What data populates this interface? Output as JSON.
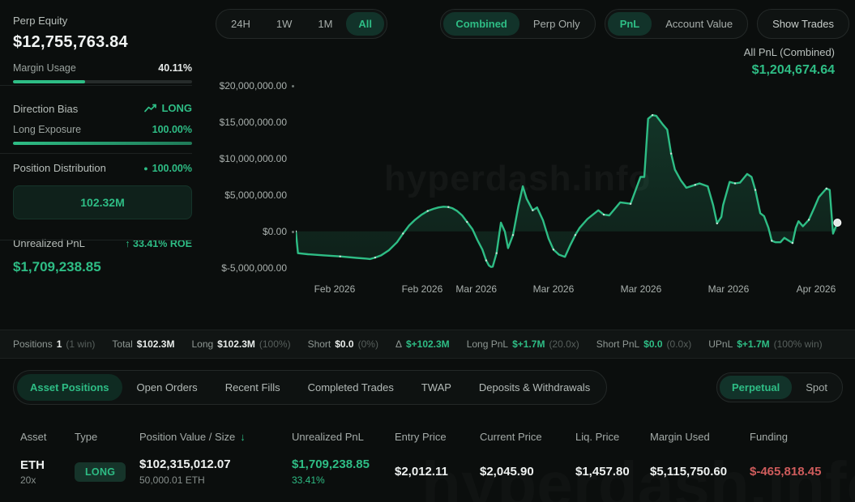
{
  "accent": {
    "green": "#2ebd85",
    "red": "#cf5c5c",
    "selected_bg": "#12332a"
  },
  "sidebar": {
    "perp_equity": {
      "label": "Perp Equity",
      "value": "$12,755,763.84"
    },
    "margin_usage": {
      "label": "Margin Usage",
      "value": "40.11%",
      "pct": 40.11
    },
    "direction_bias": {
      "label": "Direction Bias",
      "value": "LONG",
      "icon": "trend-up"
    },
    "long_exposure": {
      "label": "Long Exposure",
      "value": "100.00%",
      "pct": 100
    },
    "position_distribution": {
      "label": "Position Distribution",
      "dot": "●",
      "value": "100.00%",
      "box_value": "102.32M"
    },
    "unrealized_pnl": {
      "label": "Unrealized PnL",
      "roe_arrow": "↑",
      "roe": "33.41% ROE",
      "value": "$1,709,238.85"
    }
  },
  "toolbar": {
    "time_ranges": {
      "options": [
        "24H",
        "1W",
        "1M",
        "All"
      ],
      "selected": "All"
    },
    "combine_mode": {
      "options": [
        "Combined",
        "Perp Only"
      ],
      "selected": "Combined"
    },
    "metric": {
      "options": [
        "PnL",
        "Account Value"
      ],
      "selected": "PnL"
    },
    "show_trades": "Show Trades"
  },
  "chart": {
    "title": "All PnL (Combined)",
    "value": "$1,204,674.64",
    "watermark": "hyperdash.info"
  },
  "chart_data": {
    "type": "area",
    "title": "All PnL (Combined)",
    "unit": "USD",
    "last_value": 1204674.64,
    "y_ticks": {
      "labels": [
        "$20,000,000.00",
        "$15,000,000.00",
        "$10,000,000.00",
        "$5,000,000.00",
        "$0.00",
        "$-5,000,000.00"
      ],
      "values_musd": [
        20,
        15,
        10,
        5,
        0,
        -5
      ]
    },
    "y_range_musd": [
      -6.6,
      20.7
    ],
    "x_ticks": {
      "labels": [
        "Feb 2026",
        "Feb 2026",
        "Mar 2026",
        "Mar 2026",
        "Mar 2026",
        "Mar 2026",
        "Apr 2026"
      ],
      "positions": [
        0.071,
        0.231,
        0.33,
        0.471,
        0.631,
        0.791,
        0.951
      ]
    },
    "series": [
      {
        "name": "All PnL (Combined)",
        "points_note": "x = fraction of time axis (0-1), y = million USD",
        "points": [
          [
            0.0,
            0.0
          ],
          [
            0.004,
            -3.0
          ],
          [
            0.022,
            -3.15
          ],
          [
            0.052,
            -3.3
          ],
          [
            0.081,
            -3.45
          ],
          [
            0.111,
            -3.65
          ],
          [
            0.129,
            -3.75
          ],
          [
            0.136,
            -3.8
          ],
          [
            0.145,
            -3.6
          ],
          [
            0.156,
            -3.3
          ],
          [
            0.17,
            -2.6
          ],
          [
            0.185,
            -1.5
          ],
          [
            0.196,
            -0.3
          ],
          [
            0.207,
            0.8
          ],
          [
            0.218,
            1.6
          ],
          [
            0.23,
            2.3
          ],
          [
            0.241,
            2.8
          ],
          [
            0.252,
            3.1
          ],
          [
            0.261,
            3.3
          ],
          [
            0.27,
            3.4
          ],
          [
            0.279,
            3.35
          ],
          [
            0.286,
            3.2
          ],
          [
            0.295,
            2.8
          ],
          [
            0.304,
            2.2
          ],
          [
            0.313,
            1.3
          ],
          [
            0.323,
            0.3
          ],
          [
            0.332,
            -1.2
          ],
          [
            0.341,
            -2.5
          ],
          [
            0.348,
            -4.0
          ],
          [
            0.353,
            -4.7
          ],
          [
            0.357,
            -4.9
          ],
          [
            0.36,
            -4.85
          ],
          [
            0.367,
            -3.0
          ],
          [
            0.375,
            1.2
          ],
          [
            0.382,
            0.0
          ],
          [
            0.388,
            -2.3
          ],
          [
            0.397,
            -0.5
          ],
          [
            0.407,
            3.5
          ],
          [
            0.415,
            6.2
          ],
          [
            0.422,
            4.5
          ],
          [
            0.433,
            2.9
          ],
          [
            0.441,
            3.3
          ],
          [
            0.452,
            1.5
          ],
          [
            0.462,
            -1.0
          ],
          [
            0.471,
            -2.5
          ],
          [
            0.481,
            -3.2
          ],
          [
            0.492,
            -3.5
          ],
          [
            0.501,
            -2.0
          ],
          [
            0.511,
            -0.5
          ],
          [
            0.519,
            0.5
          ],
          [
            0.533,
            1.7
          ],
          [
            0.553,
            2.9
          ],
          [
            0.563,
            2.3
          ],
          [
            0.573,
            2.2
          ],
          [
            0.593,
            4.0
          ],
          [
            0.603,
            3.9
          ],
          [
            0.612,
            3.8
          ],
          [
            0.63,
            7.5
          ],
          [
            0.637,
            7.5
          ],
          [
            0.644,
            15.5
          ],
          [
            0.652,
            16.0
          ],
          [
            0.659,
            15.9
          ],
          [
            0.671,
            14.7
          ],
          [
            0.679,
            14.0
          ],
          [
            0.686,
            10.7
          ],
          [
            0.693,
            8.5
          ],
          [
            0.704,
            7.0
          ],
          [
            0.714,
            6.0
          ],
          [
            0.73,
            6.4
          ],
          [
            0.738,
            6.6
          ],
          [
            0.753,
            6.2
          ],
          [
            0.763,
            3.6
          ],
          [
            0.77,
            1.1
          ],
          [
            0.778,
            2.0
          ],
          [
            0.781,
            3.6
          ],
          [
            0.793,
            6.8
          ],
          [
            0.803,
            6.6
          ],
          [
            0.812,
            6.7
          ],
          [
            0.825,
            7.9
          ],
          [
            0.833,
            7.5
          ],
          [
            0.84,
            5.7
          ],
          [
            0.849,
            2.5
          ],
          [
            0.856,
            2.1
          ],
          [
            0.864,
            0.5
          ],
          [
            0.87,
            -1.3
          ],
          [
            0.877,
            -1.5
          ],
          [
            0.886,
            -1.5
          ],
          [
            0.893,
            -0.9
          ],
          [
            0.908,
            -1.6
          ],
          [
            0.914,
            0.5
          ],
          [
            0.919,
            1.4
          ],
          [
            0.927,
            0.7
          ],
          [
            0.938,
            1.6
          ],
          [
            0.948,
            3.3
          ],
          [
            0.956,
            4.7
          ],
          [
            0.963,
            5.3
          ],
          [
            0.97,
            5.9
          ],
          [
            0.976,
            5.7
          ],
          [
            0.982,
            -0.3
          ],
          [
            0.99,
            1.2
          ]
        ]
      }
    ]
  },
  "summary": {
    "items": [
      {
        "label": "Positions",
        "value": "1",
        "paren": "(1 win)",
        "green": false
      },
      {
        "label": "Total",
        "value": "$102.3M",
        "paren": "",
        "green": false
      },
      {
        "label": "Long",
        "value": "$102.3M",
        "paren": "(100%)",
        "green": false
      },
      {
        "label": "Short",
        "value": "$0.0",
        "paren": "(0%)",
        "green": false
      },
      {
        "label": "Δ",
        "value": "$+102.3M",
        "paren": "",
        "green": true
      },
      {
        "label": "Long PnL",
        "value": "$+1.7M",
        "paren": "(20.0x)",
        "green": true
      },
      {
        "label": "Short PnL",
        "value": "$0.0",
        "paren": "(0.0x)",
        "green": true
      },
      {
        "label": "UPnL",
        "value": "$+1.7M",
        "paren": "(100% win)",
        "green": true
      }
    ]
  },
  "tabs": {
    "items": [
      "Asset Positions",
      "Open Orders",
      "Recent Fills",
      "Completed Trades",
      "TWAP",
      "Deposits & Withdrawals"
    ],
    "selected": "Asset Positions",
    "market_type": {
      "options": [
        "Perpetual",
        "Spot"
      ],
      "selected": "Perpetual"
    }
  },
  "table": {
    "headers": [
      "Asset",
      "Type",
      "Position Value / Size",
      "Unrealized PnL",
      "Entry Price",
      "Current Price",
      "Liq. Price",
      "Margin Used",
      "Funding"
    ],
    "sort": {
      "column": "Position Value / Size",
      "arrow": "↓"
    },
    "rows": [
      {
        "asset": "ETH",
        "leverage": "20x",
        "type": "LONG",
        "position_value": "$102,315,012.07",
        "size": "50,000.01 ETH",
        "unrealized_pnl": "$1,709,238.85",
        "roe": "33.41%",
        "entry_price": "$2,012.11",
        "current_price": "$2,045.90",
        "liq_price": "$1,457.80",
        "margin_used": "$5,115,750.60",
        "funding": "$-465,818.45"
      }
    ]
  },
  "watermark_bottom": "hyperdash.info"
}
